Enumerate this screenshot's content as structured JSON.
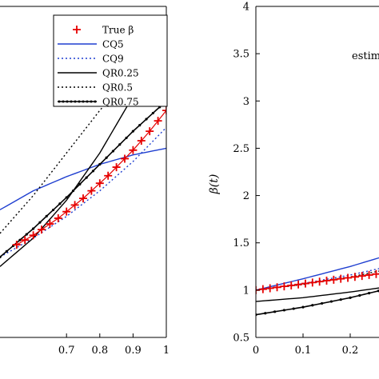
{
  "chart_data": [
    {
      "type": "line",
      "panel": "left",
      "xlabel": "",
      "ylabel": "",
      "xlim": [
        0.5,
        1.0
      ],
      "ylim": [
        0.5,
        4.0
      ],
      "x_ticks": [
        "0.7",
        "0.8",
        "0.9",
        "1"
      ],
      "x_tick_values": [
        0.7,
        0.8,
        0.9,
        1.0
      ],
      "legend": {
        "placement": "top-right",
        "entries": [
          "True β",
          "CQ5",
          "CQ9",
          "QR0.25",
          "QR0.5",
          "QR0.75"
        ]
      },
      "series": [
        {
          "name": "True β",
          "style": "red-plus",
          "color": "#e60000",
          "x": [
            0.55,
            0.575,
            0.6,
            0.625,
            0.65,
            0.675,
            0.7,
            0.725,
            0.75,
            0.775,
            0.8,
            0.825,
            0.85,
            0.875,
            0.9,
            0.925,
            0.95,
            0.975,
            1.0
          ],
          "y": [
            1.48,
            1.53,
            1.58,
            1.64,
            1.7,
            1.76,
            1.83,
            1.9,
            1.97,
            2.05,
            2.13,
            2.21,
            2.3,
            2.39,
            2.48,
            2.58,
            2.68,
            2.79,
            2.9
          ]
        },
        {
          "name": "CQ5",
          "style": "solid",
          "color": "#1f3fd0",
          "x": [
            0.5,
            0.6,
            0.7,
            0.8,
            0.9,
            1.0
          ],
          "y": [
            1.85,
            2.05,
            2.2,
            2.33,
            2.43,
            2.5
          ]
        },
        {
          "name": "CQ9",
          "style": "dotted",
          "color": "#1f3fd0",
          "x": [
            0.5,
            0.6,
            0.7,
            0.8,
            0.9,
            1.0
          ],
          "y": [
            1.35,
            1.55,
            1.78,
            2.05,
            2.36,
            2.72
          ]
        },
        {
          "name": "QR0.25",
          "style": "solid",
          "color": "#000000",
          "x": [
            0.5,
            0.6,
            0.7,
            0.8,
            0.9,
            1.0
          ],
          "y": [
            1.25,
            1.55,
            1.95,
            2.45,
            3.05,
            3.75
          ]
        },
        {
          "name": "QR0.5",
          "style": "dotted",
          "color": "#000000",
          "x": [
            0.5,
            0.6,
            0.7,
            0.8,
            0.9,
            1.0
          ],
          "y": [
            1.6,
            2.0,
            2.45,
            2.9,
            3.3,
            3.65
          ]
        },
        {
          "name": "QR0.75",
          "style": "solid-dot",
          "color": "#000000",
          "x": [
            0.5,
            0.6,
            0.7,
            0.8,
            0.9,
            1.0
          ],
          "y": [
            1.35,
            1.65,
            1.98,
            2.33,
            2.68,
            3.0
          ]
        }
      ]
    },
    {
      "type": "line",
      "panel": "right",
      "xlabel": "",
      "ylabel": "β(t)",
      "xlim": [
        0,
        0.3
      ],
      "ylim": [
        0.5,
        4.0
      ],
      "x_ticks": [
        "0",
        "0.1",
        "0.2"
      ],
      "x_tick_values": [
        0,
        0.1,
        0.2
      ],
      "y_ticks": [
        "0.5",
        "1",
        "1.5",
        "2",
        "2.5",
        "3",
        "3.5",
        "4"
      ],
      "y_tick_values": [
        0.5,
        1,
        1.5,
        2,
        2.5,
        3,
        3.5,
        4
      ],
      "annotation": "estim",
      "series": [
        {
          "name": "True β",
          "style": "red-plus",
          "color": "#e60000",
          "x": [
            0,
            0.015,
            0.03,
            0.045,
            0.06,
            0.075,
            0.09,
            0.105,
            0.12,
            0.135,
            0.15,
            0.165,
            0.18,
            0.195,
            0.21,
            0.225,
            0.24,
            0.255,
            0.27,
            0.285,
            0.3
          ],
          "y": [
            1.0,
            1.01,
            1.02,
            1.03,
            1.04,
            1.05,
            1.06,
            1.07,
            1.08,
            1.09,
            1.1,
            1.11,
            1.12,
            1.13,
            1.14,
            1.15,
            1.16,
            1.17,
            1.18,
            1.19,
            1.2
          ]
        },
        {
          "name": "CQ5",
          "style": "solid",
          "color": "#1f3fd0",
          "x": [
            0,
            0.1,
            0.2,
            0.3
          ],
          "y": [
            1.0,
            1.12,
            1.25,
            1.4
          ]
        },
        {
          "name": "CQ9",
          "style": "dotted",
          "color": "#1f3fd0",
          "x": [
            0,
            0.1,
            0.2,
            0.3
          ],
          "y": [
            1.0,
            1.07,
            1.16,
            1.27
          ]
        },
        {
          "name": "QR0.25",
          "style": "solid",
          "color": "#000000",
          "x": [
            0,
            0.1,
            0.2,
            0.3
          ],
          "y": [
            0.88,
            0.92,
            0.98,
            1.05
          ]
        },
        {
          "name": "QR0.5",
          "style": "dotted",
          "color": "#000000",
          "x": [
            0,
            0.1,
            0.2,
            0.3
          ],
          "y": [
            1.0,
            1.06,
            1.14,
            1.24
          ]
        },
        {
          "name": "QR0.75",
          "style": "solid-dot",
          "color": "#000000",
          "x": [
            0,
            0.1,
            0.2,
            0.3
          ],
          "y": [
            0.74,
            0.82,
            0.92,
            1.04
          ]
        }
      ]
    }
  ]
}
